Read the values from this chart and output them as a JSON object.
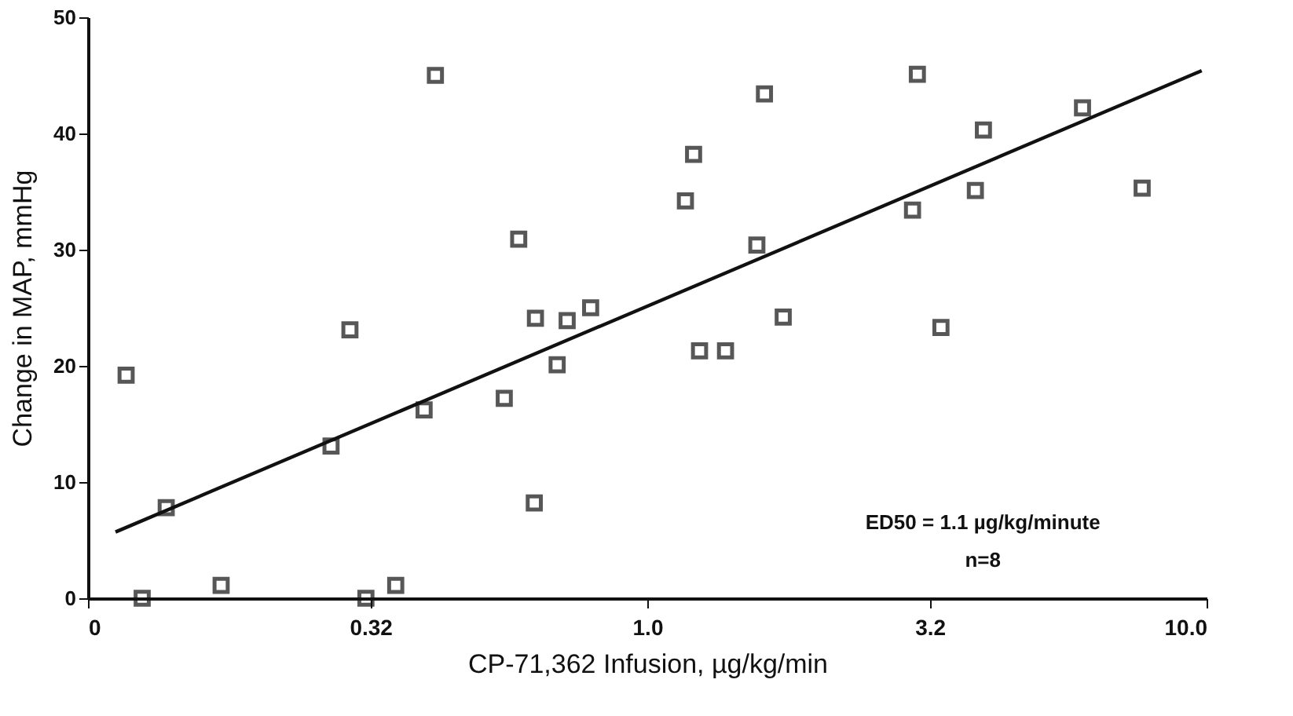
{
  "chart_data": {
    "type": "scatter",
    "xlabel": "CP-71,362  Infusion,  µg/kg/min",
    "ylabel": "Change in MAP, mmHg",
    "log": "x",
    "xlim": [
      0.1,
      10
    ],
    "xticks": [
      {
        "value": 0.1,
        "label": "0"
      },
      0.32,
      {
        "value": 1,
        "label": "1.0"
      },
      3.2,
      {
        "value": 10,
        "label": "10.0"
      }
    ],
    "ylim": [
      0,
      50
    ],
    "yticks": [
      0,
      10,
      20,
      30,
      40,
      50
    ],
    "grid": false,
    "series": [
      {
        "color": "#111111",
        "marker": "square",
        "x": [
          0.117,
          0.418,
          0.589,
          0.631,
          0.719,
          0.792,
          0.294,
          0.69,
          0.555,
          0.399,
          0.272,
          0.138,
          0.628,
          0.125,
          0.173,
          0.314,
          0.355,
          1.62,
          1.21,
          1.17,
          1.57,
          1.75,
          1.24,
          1.38,
          3.04,
          2.98,
          3.35,
          3.86,
          3.99,
          6.0,
          7.67
        ],
        "values": [
          19.2,
          45.0,
          30.9,
          24.1,
          23.9,
          25.0,
          23.1,
          20.1,
          17.2,
          16.2,
          13.1,
          7.8,
          8.2,
          0,
          1.1,
          0,
          1.1,
          43.4,
          38.2,
          34.2,
          30.4,
          24.2,
          21.3,
          21.3,
          45.1,
          33.4,
          23.3,
          35.1,
          40.3,
          42.2,
          35.3
        ]
      },
      {
        "type": "line",
        "color": "#111111",
        "marker": "none",
        "line_style": "solid",
        "x": [
          0.112,
          9.8
        ],
        "values": [
          5.7,
          45.4
        ]
      }
    ],
    "annotations": [
      "ED50 = 1.1 µg/kg/minute",
      "n=8"
    ]
  }
}
